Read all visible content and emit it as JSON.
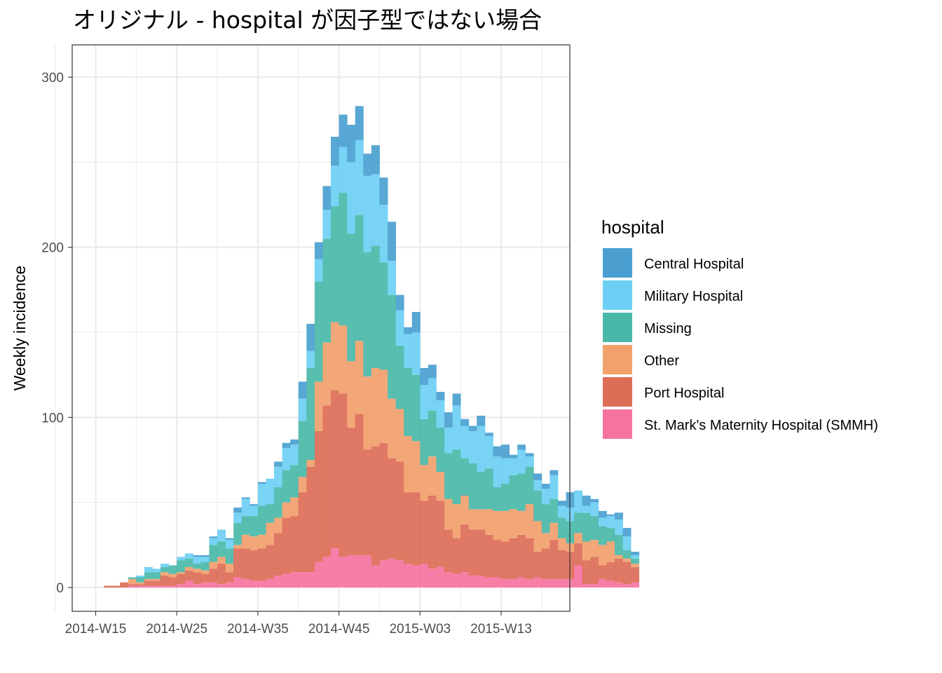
{
  "chart_data": {
    "type": "bar",
    "stacked": true,
    "title": "オリジナル - hospital が因子型ではない場合",
    "xlabel": "",
    "ylabel": "Weekly incidence",
    "ylim": [
      -14,
      319
    ],
    "y_ticks": [
      0,
      100,
      200,
      300
    ],
    "x_tick_labels": [
      "2014-W15",
      "2014-W25",
      "2014-W35",
      "2014-W45",
      "2015-W03",
      "2015-W13"
    ],
    "x_tick_week_index": [
      0,
      10,
      20,
      30,
      40,
      50
    ],
    "first_week": "2014-W15",
    "grid": true,
    "legend": {
      "title": "hospital",
      "position": "right",
      "entries": [
        "Central Hospital",
        "Military Hospital",
        "Missing",
        "Other",
        "Port Hospital",
        "St. Mark's Maternity Hospital (SMMH)"
      ]
    },
    "colors": [
      "#4a9fd0",
      "#6ccff3",
      "#4ab8a8",
      "#f2a06c",
      "#dc6d57",
      "#f573a0"
    ],
    "series": [
      {
        "name": "St. Mark's Maternity Hospital (SMMH)",
        "values": [
          0,
          0,
          0,
          0,
          1,
          1,
          1,
          1,
          1,
          1,
          2,
          4,
          2,
          3,
          3,
          2,
          3,
          6,
          5,
          4,
          4,
          5,
          7,
          8,
          9,
          9,
          9,
          15,
          18,
          23,
          18,
          19,
          19,
          19,
          13,
          16,
          17,
          16,
          14,
          13,
          14,
          11,
          12,
          9,
          8,
          9,
          7,
          7,
          6,
          6,
          5,
          5,
          6,
          5,
          6,
          5,
          5,
          5,
          5,
          13,
          2,
          2,
          5,
          4,
          3,
          2,
          3
        ]
      },
      {
        "name": "Port Hospital",
        "values": [
          0,
          1,
          1,
          3,
          1,
          1,
          3,
          3,
          6,
          5,
          6,
          6,
          7,
          5,
          8,
          12,
          6,
          17,
          18,
          18,
          19,
          20,
          25,
          33,
          33,
          47,
          62,
          77,
          89,
          93,
          96,
          75,
          83,
          62,
          70,
          69,
          59,
          58,
          42,
          43,
          37,
          43,
          39,
          25,
          21,
          28,
          27,
          27,
          25,
          22,
          22,
          24,
          25,
          24,
          15,
          18,
          23,
          17,
          16,
          13,
          14,
          16,
          8,
          11,
          14,
          13,
          9
        ]
      },
      {
        "name": "Other",
        "values": [
          0,
          0,
          0,
          0,
          3,
          1,
          1,
          1,
          2,
          2,
          1,
          2,
          2,
          2,
          4,
          4,
          5,
          2,
          8,
          8,
          8,
          13,
          9,
          9,
          11,
          9,
          4,
          29,
          37,
          40,
          40,
          39,
          43,
          43,
          46,
          43,
          35,
          31,
          33,
          30,
          21,
          23,
          17,
          18,
          20,
          17,
          12,
          12,
          15,
          17,
          18,
          17,
          14,
          20,
          18,
          9,
          10,
          7,
          5,
          6,
          11,
          10,
          12,
          12,
          2,
          2,
          2
        ]
      },
      {
        "name": "Missing",
        "values": [
          0,
          0,
          0,
          0,
          1,
          3,
          4,
          4,
          3,
          5,
          7,
          5,
          3,
          5,
          10,
          9,
          9,
          13,
          11,
          12,
          17,
          11,
          18,
          19,
          19,
          33,
          54,
          59,
          61,
          68,
          78,
          75,
          74,
          73,
          72,
          63,
          61,
          37,
          40,
          39,
          27,
          27,
          26,
          27,
          32,
          22,
          27,
          22,
          24,
          14,
          16,
          20,
          22,
          22,
          18,
          17,
          14,
          12,
          13,
          12,
          17,
          14,
          11,
          8,
          12,
          5,
          3
        ]
      },
      {
        "name": "Military Hospital",
        "values": [
          0,
          0,
          0,
          0,
          0,
          1,
          3,
          2,
          2,
          0,
          2,
          3,
          4,
          3,
          4,
          7,
          5,
          6,
          10,
          6,
          13,
          15,
          12,
          13,
          12,
          13,
          10,
          13,
          17,
          24,
          27,
          42,
          44,
          45,
          42,
          34,
          20,
          21,
          20,
          25,
          20,
          19,
          16,
          15,
          26,
          19,
          19,
          27,
          19,
          18,
          15,
          10,
          14,
          6,
          6,
          9,
          14,
          7,
          8,
          13,
          4,
          8,
          5,
          7,
          9,
          8,
          2
        ]
      },
      {
        "name": "Central Hospital",
        "values": [
          0,
          0,
          0,
          0,
          0,
          0,
          0,
          0,
          0,
          0,
          0,
          0,
          1,
          1,
          1,
          0,
          1,
          3,
          1,
          1,
          1,
          0,
          3,
          3,
          3,
          10,
          16,
          10,
          14,
          17,
          19,
          22,
          20,
          13,
          17,
          16,
          23,
          9,
          4,
          12,
          10,
          8,
          5,
          9,
          7,
          4,
          3,
          6,
          2,
          6,
          8,
          2,
          3,
          2,
          4,
          3,
          3,
          3,
          9,
          0,
          6,
          2,
          4,
          1,
          4,
          5,
          2
        ]
      }
    ]
  }
}
